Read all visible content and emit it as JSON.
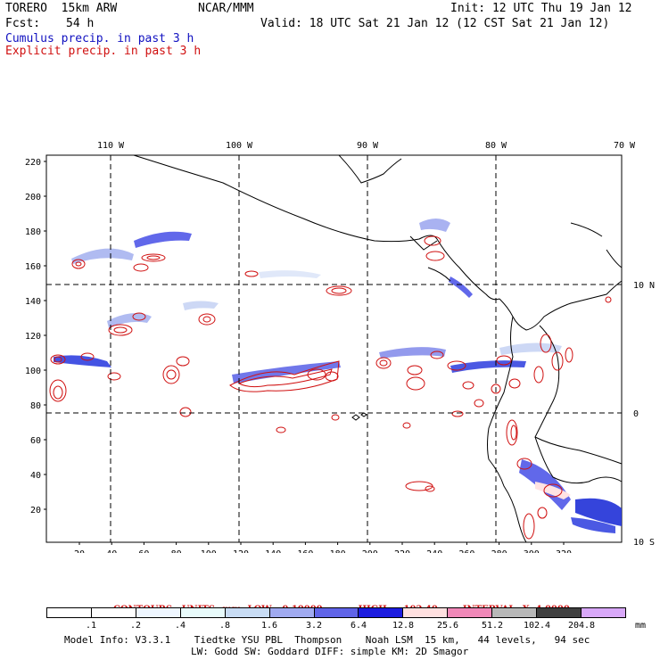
{
  "header": {
    "model": "TORERO  15km ARW",
    "org": "NCAR/MMM",
    "init": "Init: 12 UTC Thu 19 Jan 12",
    "fcst_label": "Fcst:",
    "fcst_value": "54 h",
    "valid": "Valid: 18 UTC Sat 21 Jan 12 (12 CST Sat 21 Jan 12)",
    "legend_cumulus": "Cumulus precip. in past 3 h",
    "legend_explicit": "Explicit precip. in past 3 h"
  },
  "map": {
    "top_lon_labels": [
      "110 W",
      "100 W",
      "90 W",
      "80 W",
      "70 W"
    ],
    "right_lat_labels": [
      "10 N",
      "0",
      "10 S"
    ],
    "left_y_ticks": [
      "220",
      "200",
      "180",
      "160",
      "140",
      "120",
      "100",
      "80",
      "60",
      "40",
      "20"
    ],
    "bottom_x_ticks": [
      "20",
      "40",
      "60",
      "80",
      "100",
      "120",
      "140",
      "160",
      "180",
      "200",
      "220",
      "240",
      "260",
      "280",
      "300",
      "320"
    ]
  },
  "contours": {
    "units": "CONTOURS:  UNITS=mm  LOW= 0.10000",
    "high": "HIGH=   102.40",
    "interval": "INTERVAL=X  4.0000"
  },
  "colorbar": {
    "labels": [
      ".1",
      ".2",
      ".4",
      ".8",
      "1.6",
      "3.2",
      "6.4",
      "12.8",
      "25.6",
      "51.2",
      "102.4",
      "204.8"
    ],
    "units": "mm",
    "colors": [
      "#ffffff",
      "#ffffff",
      "#eef6ff",
      "#e8fbfb",
      "#c8dcf4",
      "#a0aaf0",
      "#6064e8",
      "#1c1ce0",
      "#ffe0e0",
      "#f088b8",
      "#b8b8b8",
      "#404040",
      "#d8a8f8"
    ]
  },
  "footer": {
    "line1": "Model Info: V3.3.1    Tiedtke YSU PBL  Thompson    Noah LSM  15 km,   44 levels,   94 sec",
    "line2": "LW: Godd SW: Goddard DIFF: simple KM: 2D Smagor"
  }
}
